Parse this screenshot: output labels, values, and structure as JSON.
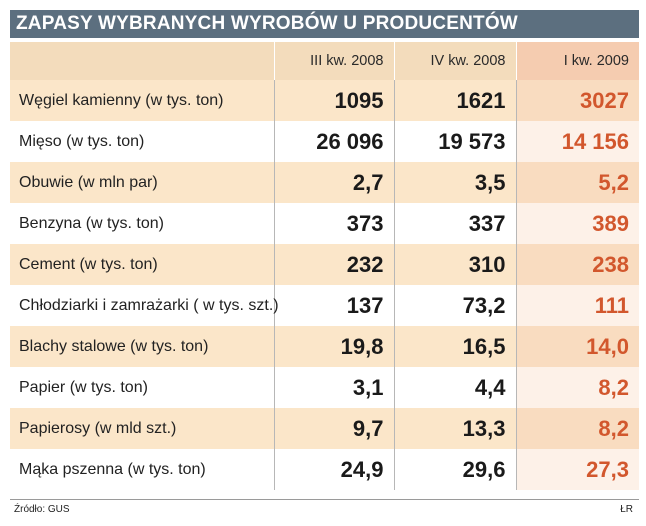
{
  "title": "ZAPASY WYBRANYCH WYROBÓW U PRODUCENTÓW",
  "columns": [
    "III kw. 2008",
    "IV kw. 2008",
    "I kw. 2009"
  ],
  "rows": [
    {
      "label": "Węgiel kamienny (w tys. ton)",
      "v1": "1095",
      "v2": "1621",
      "v3": "3027"
    },
    {
      "label": "Mięso (w tys. ton)",
      "v1": "26 096",
      "v2": "19 573",
      "v3": "14 156"
    },
    {
      "label": "Obuwie (w mln par)",
      "v1": "2,7",
      "v2": "3,5",
      "v3": "5,2"
    },
    {
      "label": "Benzyna (w tys. ton)",
      "v1": "373",
      "v2": "337",
      "v3": "389"
    },
    {
      "label": "Cement (w tys. ton)",
      "v1": "232",
      "v2": "310",
      "v3": "238"
    },
    {
      "label": "Chłodziarki i zamrażarki ( w tys. szt.)",
      "v1": "137",
      "v2": "73,2",
      "v3": "111"
    },
    {
      "label": "Blachy stalowe (w tys. ton)",
      "v1": "19,8",
      "v2": "16,5",
      "v3": "14,0"
    },
    {
      "label": "Papier (w tys. ton)",
      "v1": "3,1",
      "v2": "4,4",
      "v3": "8,2"
    },
    {
      "label": "Papierosy (w mld szt.)",
      "v1": "9,7",
      "v2": "13,3",
      "v3": "8,2"
    },
    {
      "label": "Mąka pszenna (w tys. ton)",
      "v1": "24,9",
      "v2": "29,6",
      "v3": "27,3"
    }
  ],
  "source": "Źródło: GUS",
  "author": "ŁR",
  "colors": {
    "title_bg": "#5c6f7f",
    "shade_row": "#fbe6c9",
    "highlight_value": "#d2572d"
  }
}
